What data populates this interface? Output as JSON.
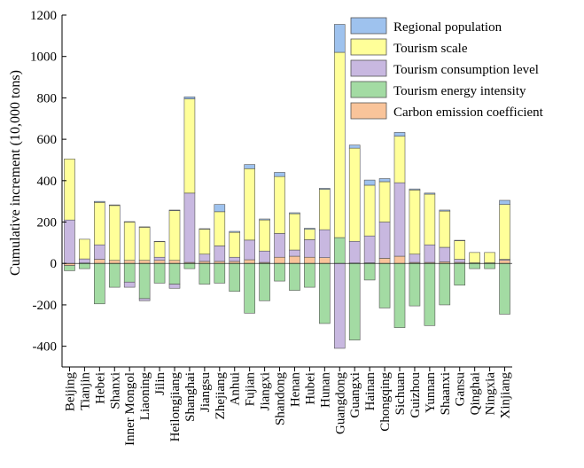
{
  "chart_data": {
    "type": "bar",
    "stacked": true,
    "ylabel": "Cumulative increment (10,000 tons)",
    "xlabel": "",
    "ylim": [
      -500,
      1200
    ],
    "yticks": [
      -400,
      -200,
      0,
      200,
      400,
      600,
      800,
      1000,
      1200
    ],
    "grid": false,
    "legend_position": "top-right",
    "categories": [
      "Beijing",
      "Tianjin",
      "Hebei",
      "Shanxi",
      "Inner Mongol",
      "Liaoning",
      "Jilin",
      "Heilongjiang",
      "Shanghai",
      "Jiangsu",
      "Zhejiang",
      "Anhui",
      "Fujian",
      "Jiangxi",
      "Shandong",
      "Henan",
      "Hubei",
      "Hunan",
      "Guangdong",
      "Guangxi",
      "Hainan",
      "Chongqing",
      "Sichuan",
      "Guizhou",
      "Yunnan",
      "Shaanxi",
      "Gansu",
      "Qinghai",
      "Ningxia",
      "Xinjiang"
    ],
    "series": [
      {
        "name": "Carbon emission coefficient",
        "color": "#f9c49a",
        "values": [
          -10,
          2,
          20,
          15,
          15,
          15,
          15,
          15,
          5,
          10,
          10,
          10,
          18,
          5,
          30,
          35,
          30,
          28,
          0,
          2,
          3,
          25,
          35,
          5,
          5,
          8,
          5,
          3,
          3,
          15
        ]
      },
      {
        "name": "Tourism energy intensity",
        "color": "#a3dba3",
        "values": [
          -25,
          -25,
          -195,
          -115,
          -90,
          -170,
          -95,
          -100,
          -25,
          -100,
          -95,
          -135,
          -240,
          -180,
          -85,
          -130,
          -115,
          -290,
          125,
          -370,
          -80,
          -215,
          -310,
          -205,
          -300,
          -200,
          -105,
          -25,
          -25,
          -245
        ]
      },
      {
        "name": "Tourism consumption level",
        "color": "#c8b8e0",
        "values": [
          210,
          20,
          70,
          0,
          -25,
          -10,
          15,
          -20,
          335,
          35,
          75,
          20,
          95,
          55,
          115,
          30,
          85,
          135,
          -410,
          105,
          130,
          175,
          355,
          40,
          85,
          70,
          15,
          0,
          0,
          5
        ]
      },
      {
        "name": "Tourism scale",
        "color": "#ffff99",
        "values": [
          295,
          95,
          205,
          265,
          185,
          160,
          75,
          240,
          455,
          120,
          165,
          120,
          345,
          150,
          275,
          175,
          50,
          195,
          895,
          450,
          245,
          195,
          225,
          310,
          245,
          175,
          90,
          50,
          50,
          265
        ]
      },
      {
        "name": "Regional population",
        "color": "#9ec2ee",
        "values": [
          0,
          0,
          5,
          3,
          2,
          2,
          2,
          3,
          10,
          3,
          35,
          5,
          20,
          5,
          20,
          5,
          5,
          5,
          135,
          15,
          25,
          15,
          18,
          5,
          5,
          5,
          2,
          0,
          0,
          20
        ]
      }
    ],
    "legend_order": [
      "Regional population",
      "Tourism scale",
      "Tourism consumption level",
      "Tourism energy intensity",
      "Carbon emission coefficient"
    ]
  }
}
